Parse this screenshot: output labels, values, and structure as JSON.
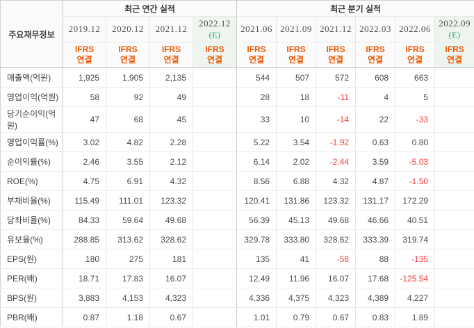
{
  "table": {
    "corner_label": "주요재무정보",
    "estimate_mark": "(E)",
    "ifrs": {
      "line1": "IFRS",
      "line2": "연결"
    },
    "sections": [
      {
        "title": "최근 연간 실적",
        "columns": [
          {
            "period": "2019.12",
            "estimate": false
          },
          {
            "period": "2020.12",
            "estimate": false
          },
          {
            "period": "2021.12",
            "estimate": false
          },
          {
            "period": "2022.12",
            "estimate": true
          }
        ]
      },
      {
        "title": "최근 분기 실적",
        "columns": [
          {
            "period": "2021.06",
            "estimate": false
          },
          {
            "period": "2021.09",
            "estimate": false
          },
          {
            "period": "2021.12",
            "estimate": false
          },
          {
            "period": "2022.03",
            "estimate": false
          },
          {
            "period": "2022.06",
            "estimate": false
          },
          {
            "period": "2022.09",
            "estimate": true
          }
        ]
      }
    ],
    "rows": [
      {
        "label": "매출액(억원)",
        "group_start": false,
        "annual": [
          "1,925",
          "1,905",
          "2,135",
          ""
        ],
        "quarterly": [
          "544",
          "507",
          "572",
          "608",
          "663",
          ""
        ]
      },
      {
        "label": "영업이익(억원)",
        "group_start": false,
        "annual": [
          "58",
          "92",
          "49",
          ""
        ],
        "quarterly": [
          "28",
          "18",
          "-11",
          "4",
          "5",
          ""
        ]
      },
      {
        "label": "당기순이익(억원)",
        "group_start": false,
        "annual": [
          "47",
          "68",
          "45",
          ""
        ],
        "quarterly": [
          "33",
          "10",
          "-14",
          "22",
          "-33",
          ""
        ]
      },
      {
        "label": "영업이익률(%)",
        "group_start": true,
        "annual": [
          "3.02",
          "4.82",
          "2.28",
          ""
        ],
        "quarterly": [
          "5.22",
          "3.54",
          "-1.92",
          "0.63",
          "0.80",
          ""
        ]
      },
      {
        "label": "순이익률(%)",
        "group_start": false,
        "annual": [
          "2.46",
          "3.55",
          "2.12",
          ""
        ],
        "quarterly": [
          "6.14",
          "2.02",
          "-2.44",
          "3.59",
          "-5.03",
          ""
        ]
      },
      {
        "label": "ROE(%)",
        "group_start": false,
        "annual": [
          "4.75",
          "6.91",
          "4.32",
          ""
        ],
        "quarterly": [
          "8.56",
          "6.88",
          "4.32",
          "4.87",
          "-1.50",
          ""
        ]
      },
      {
        "label": "부채비율(%)",
        "group_start": true,
        "annual": [
          "115.49",
          "111.01",
          "123.32",
          ""
        ],
        "quarterly": [
          "120.41",
          "131.86",
          "123.32",
          "131.17",
          "172.29",
          ""
        ]
      },
      {
        "label": "당좌비율(%)",
        "group_start": false,
        "annual": [
          "84.33",
          "59.64",
          "49.68",
          ""
        ],
        "quarterly": [
          "56.39",
          "45.13",
          "49.68",
          "46.66",
          "40.51",
          ""
        ]
      },
      {
        "label": "유보율(%)",
        "group_start": false,
        "annual": [
          "288.85",
          "313.62",
          "328.62",
          ""
        ],
        "quarterly": [
          "329.78",
          "333.80",
          "328.62",
          "333.39",
          "319.74",
          ""
        ]
      },
      {
        "label": "EPS(원)",
        "group_start": true,
        "annual": [
          "180",
          "275",
          "181",
          ""
        ],
        "quarterly": [
          "135",
          "41",
          "-58",
          "88",
          "-135",
          ""
        ]
      },
      {
        "label": "PER(배)",
        "group_start": false,
        "annual": [
          "18.71",
          "17.83",
          "16.07",
          ""
        ],
        "quarterly": [
          "12.49",
          "11.96",
          "16.07",
          "17.68",
          "-125.54",
          ""
        ]
      },
      {
        "label": "BPS(원)",
        "group_start": false,
        "annual": [
          "3,883",
          "4,153",
          "4,323",
          ""
        ],
        "quarterly": [
          "4,336",
          "4,375",
          "4,323",
          "4,389",
          "4,227",
          ""
        ]
      },
      {
        "label": "PBR(배)",
        "group_start": false,
        "annual": [
          "0.87",
          "1.18",
          "0.67",
          ""
        ],
        "quarterly": [
          "1.01",
          "0.79",
          "0.67",
          "0.83",
          "1.89",
          ""
        ]
      }
    ],
    "colors": {
      "accent_orange": "#ee5700",
      "estimate_green": "#17a45e",
      "negative_red": "#f53838",
      "estimate_bg": "#eff5f0"
    }
  }
}
